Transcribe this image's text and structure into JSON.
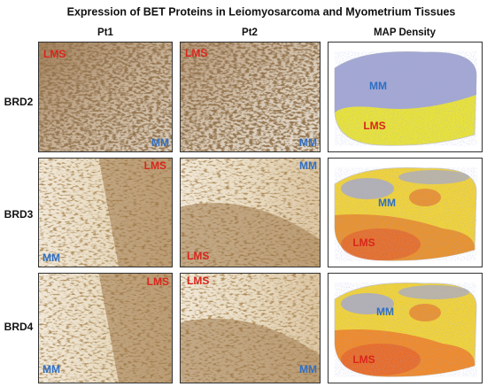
{
  "title": "Expression of BET Proteins in Leiomyosarcoma and Myometrium Tissues",
  "columns": [
    "Pt1",
    "Pt2",
    "MAP Density"
  ],
  "rows": [
    {
      "label": "BRD2",
      "panels": [
        [
          "LMS",
          "MM"
        ],
        [
          "LMS",
          "MM"
        ],
        [
          "MM",
          "LMS"
        ]
      ]
    },
    {
      "label": "BRD3",
      "panels": [
        [
          "LMS",
          "MM"
        ],
        [
          "MM",
          "LMS"
        ],
        [
          "MM",
          "LMS"
        ]
      ]
    },
    {
      "label": "BRD4",
      "panels": [
        [
          "LMS",
          "MM"
        ],
        [
          "LMS",
          "MM"
        ],
        [
          "MM",
          "LMS"
        ]
      ]
    }
  ]
}
